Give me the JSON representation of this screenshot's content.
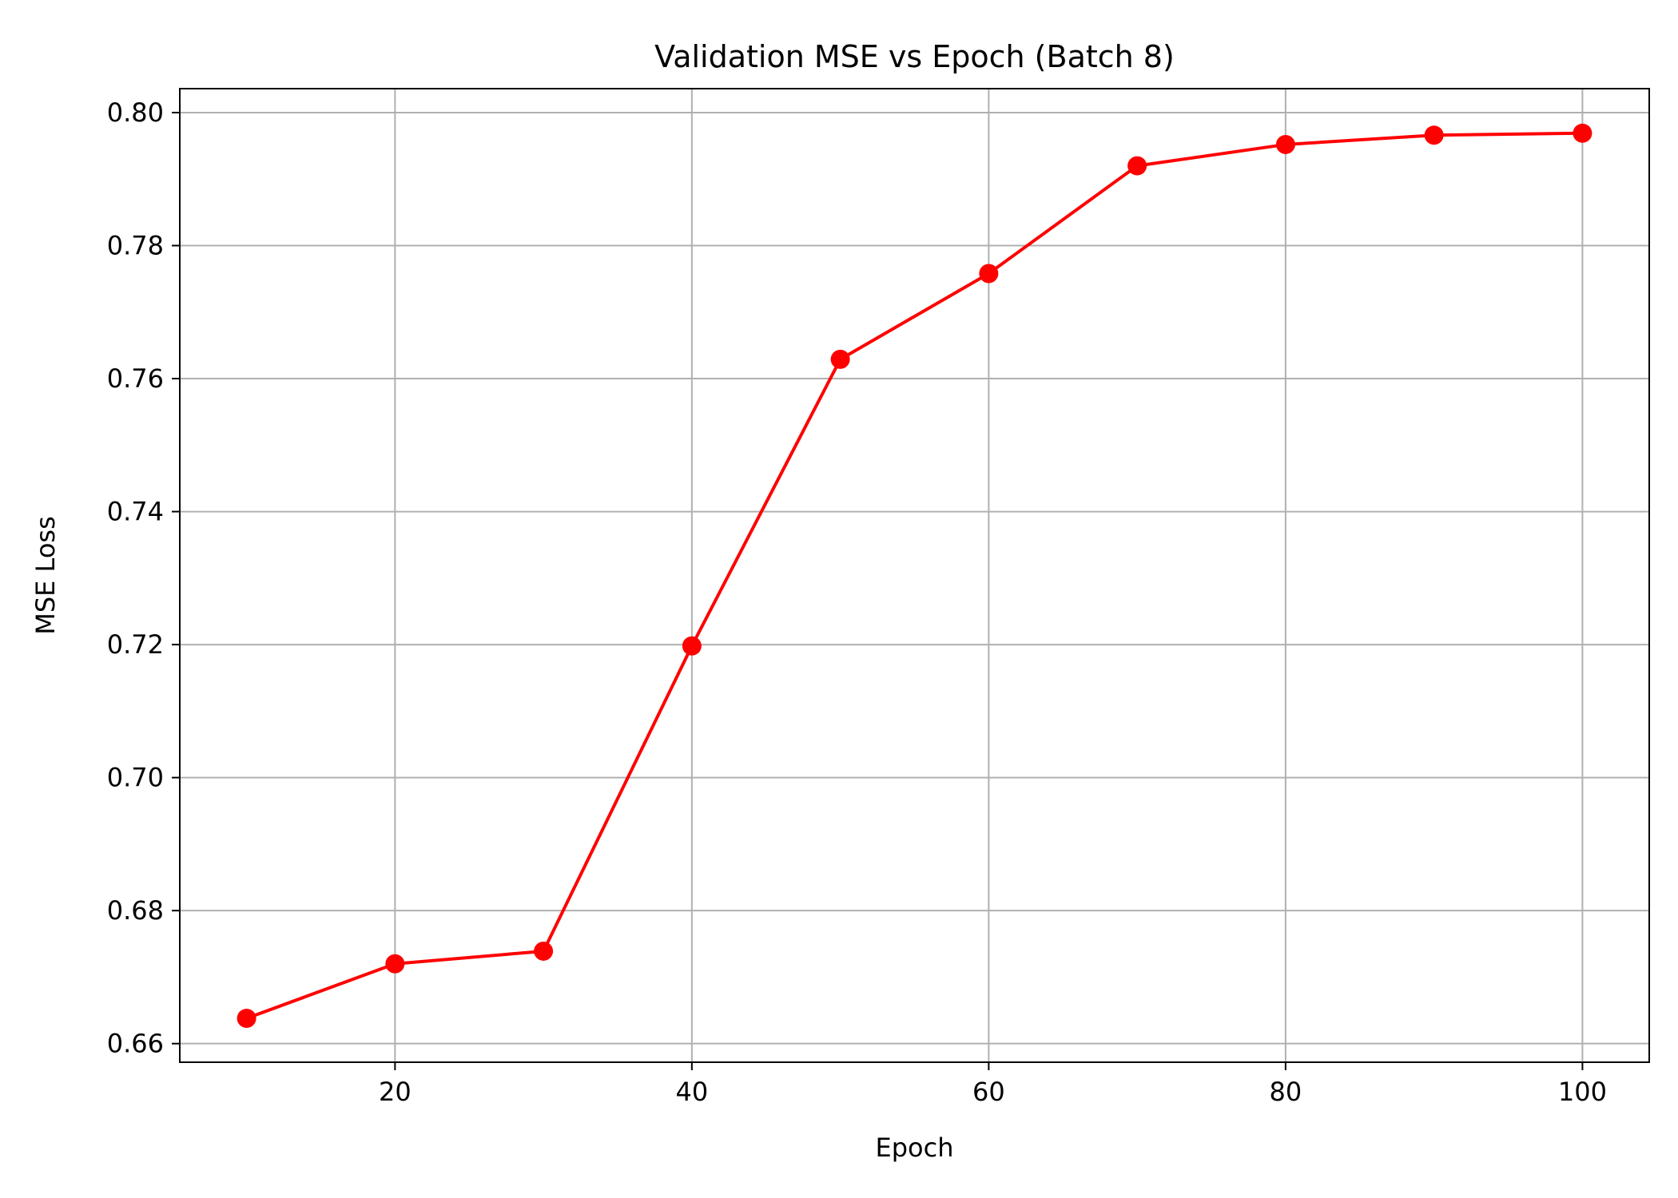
{
  "chart_data": {
    "type": "line",
    "title": "Validation MSE vs Epoch (Batch 8)",
    "xlabel": "Epoch",
    "ylabel": "MSE Loss",
    "x": [
      10,
      20,
      30,
      40,
      50,
      60,
      70,
      80,
      90,
      100
    ],
    "series": [
      {
        "values": [
          0.6638,
          0.672,
          0.6739,
          0.7198,
          0.7629,
          0.7758,
          0.792,
          0.7952,
          0.7966,
          0.7969
        ],
        "color": "#ff0000",
        "marker": "circle"
      }
    ],
    "xlim": [
      5.5,
      104.5
    ],
    "ylim": [
      0.6572,
      0.8036
    ],
    "xticks": [
      20,
      40,
      60,
      80,
      100
    ],
    "xtick_labels": [
      "20",
      "40",
      "60",
      "80",
      "100"
    ],
    "yticks": [
      0.66,
      0.68,
      0.7,
      0.72,
      0.74,
      0.76,
      0.78,
      0.8
    ],
    "ytick_labels": [
      "0.66",
      "0.68",
      "0.70",
      "0.72",
      "0.74",
      "0.76",
      "0.78",
      "0.80"
    ],
    "grid": true,
    "legend": false
  }
}
